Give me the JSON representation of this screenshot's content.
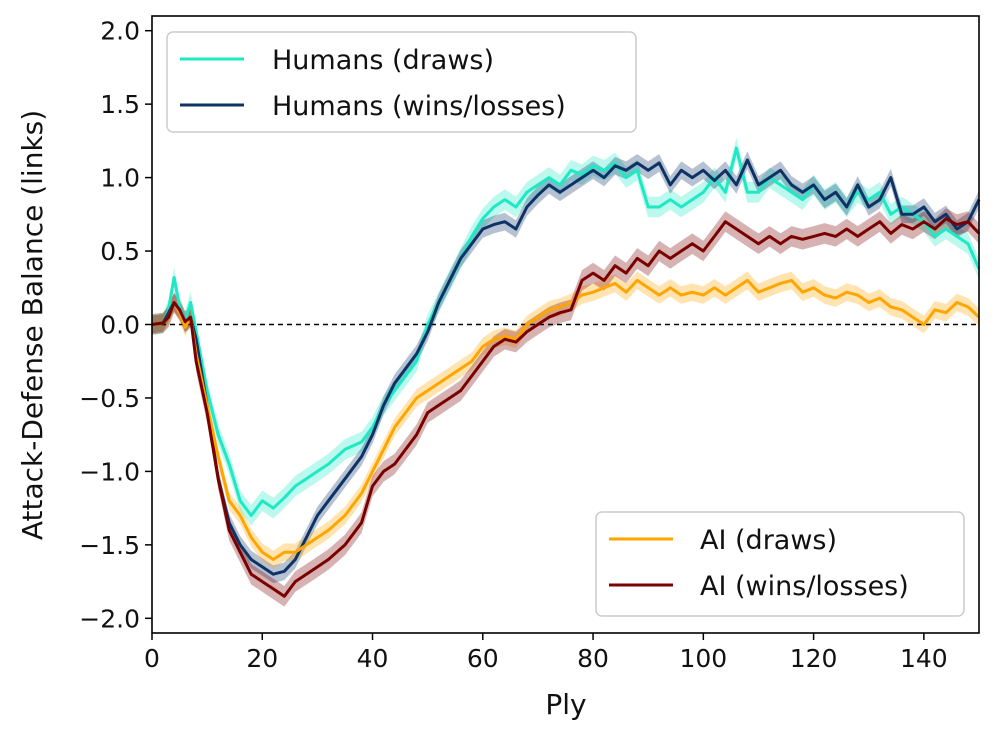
{
  "chart_data": {
    "type": "line",
    "title": "",
    "xlabel": "Ply",
    "ylabel": "Attack-Defense Balance (links)",
    "xlim": [
      0,
      150
    ],
    "ylim": [
      -2.1,
      2.1
    ],
    "xticks": [
      0,
      20,
      40,
      60,
      80,
      100,
      120,
      140
    ],
    "xtick_labels": [
      "0",
      "20",
      "40",
      "60",
      "80",
      "100",
      "120",
      "140"
    ],
    "yticks": [
      2.0,
      1.5,
      1.0,
      0.5,
      0.0,
      -0.5,
      -1.0,
      -1.5,
      -2.0
    ],
    "ytick_labels": [
      "2.0",
      "1.5",
      "1.0",
      "0.5",
      "0.0",
      "−0.5",
      "−1.0",
      "−1.5",
      "−2.0"
    ],
    "reference_line": {
      "y": 0.0,
      "style": "dashed"
    },
    "legends": [
      {
        "placement": "upper-left",
        "entries": [
          0,
          1
        ]
      },
      {
        "placement": "lower-right",
        "entries": [
          2,
          3
        ]
      }
    ],
    "series": [
      {
        "name": "Humans (draws)",
        "color": "#1de9c4",
        "band": 0.07,
        "x": [
          0,
          2,
          3,
          4,
          5,
          6,
          7,
          8,
          10,
          12,
          14,
          16,
          18,
          20,
          22,
          24,
          26,
          28,
          30,
          32,
          35,
          38,
          40,
          42,
          44,
          46,
          48,
          50,
          52,
          54,
          56,
          58,
          60,
          62,
          64,
          66,
          68,
          70,
          72,
          74,
          76,
          78,
          80,
          82,
          84,
          86,
          88,
          90,
          92,
          94,
          96,
          98,
          100,
          102,
          104,
          106,
          108,
          110,
          112,
          114,
          116,
          118,
          120,
          122,
          124,
          126,
          128,
          130,
          132,
          134,
          136,
          138,
          140,
          142,
          144,
          146,
          148,
          150
        ],
        "values": [
          0,
          0.01,
          0.1,
          0.32,
          0.12,
          0.02,
          0.15,
          -0.05,
          -0.45,
          -0.75,
          -0.95,
          -1.2,
          -1.3,
          -1.2,
          -1.25,
          -1.18,
          -1.1,
          -1.05,
          -1.0,
          -0.95,
          -0.85,
          -0.8,
          -0.7,
          -0.55,
          -0.45,
          -0.35,
          -0.25,
          0.0,
          0.15,
          0.3,
          0.45,
          0.6,
          0.72,
          0.8,
          0.85,
          0.8,
          0.9,
          0.95,
          1.0,
          0.95,
          1.05,
          1.02,
          1.08,
          1.05,
          1.1,
          1.0,
          1.05,
          0.8,
          0.8,
          0.85,
          0.8,
          0.85,
          0.9,
          1.0,
          0.9,
          1.2,
          0.9,
          0.9,
          1.0,
          0.95,
          0.9,
          0.85,
          0.95,
          0.85,
          0.9,
          0.8,
          0.9,
          0.85,
          0.9,
          0.75,
          0.8,
          0.75,
          0.7,
          0.6,
          0.65,
          0.6,
          0.55,
          0.38
        ]
      },
      {
        "name": "Humans (wins/losses)",
        "color": "#0d3366",
        "band": 0.06,
        "x": [
          0,
          2,
          3,
          4,
          5,
          6,
          7,
          8,
          10,
          12,
          14,
          16,
          18,
          20,
          22,
          24,
          26,
          28,
          30,
          32,
          35,
          38,
          40,
          42,
          44,
          46,
          48,
          50,
          52,
          54,
          56,
          58,
          60,
          62,
          64,
          66,
          68,
          70,
          72,
          74,
          76,
          78,
          80,
          82,
          84,
          86,
          88,
          90,
          92,
          94,
          96,
          98,
          100,
          102,
          104,
          106,
          108,
          110,
          112,
          114,
          116,
          118,
          120,
          122,
          124,
          126,
          128,
          130,
          132,
          134,
          136,
          138,
          140,
          142,
          144,
          146,
          148,
          150
        ],
        "values": [
          0,
          0.01,
          0.08,
          0.15,
          0.1,
          0.0,
          0.05,
          -0.1,
          -0.55,
          -1.05,
          -1.35,
          -1.5,
          -1.6,
          -1.65,
          -1.7,
          -1.68,
          -1.6,
          -1.45,
          -1.3,
          -1.2,
          -1.05,
          -0.9,
          -0.75,
          -0.55,
          -0.4,
          -0.3,
          -0.2,
          -0.05,
          0.15,
          0.3,
          0.45,
          0.55,
          0.65,
          0.68,
          0.7,
          0.65,
          0.8,
          0.88,
          0.95,
          0.9,
          0.95,
          1.0,
          1.05,
          1.0,
          1.08,
          1.05,
          1.1,
          1.05,
          1.1,
          0.95,
          1.05,
          1.0,
          1.05,
          0.98,
          1.05,
          0.95,
          1.12,
          0.95,
          1.0,
          1.05,
          0.95,
          0.9,
          0.95,
          0.85,
          0.9,
          0.8,
          0.95,
          0.8,
          0.85,
          1.0,
          0.75,
          0.75,
          0.8,
          0.7,
          0.75,
          0.65,
          0.7,
          0.85
        ]
      },
      {
        "name": "AI (draws)",
        "color": "#ffa500",
        "band": 0.06,
        "x": [
          0,
          2,
          3,
          4,
          5,
          6,
          7,
          8,
          10,
          12,
          14,
          16,
          18,
          20,
          22,
          24,
          26,
          28,
          30,
          32,
          35,
          38,
          40,
          42,
          44,
          46,
          48,
          50,
          52,
          54,
          56,
          58,
          60,
          62,
          64,
          66,
          68,
          70,
          72,
          74,
          76,
          78,
          80,
          82,
          84,
          86,
          88,
          90,
          92,
          94,
          96,
          98,
          100,
          102,
          104,
          106,
          108,
          110,
          112,
          114,
          116,
          118,
          120,
          122,
          124,
          126,
          128,
          130,
          132,
          134,
          136,
          138,
          140,
          142,
          144,
          146,
          148,
          150
        ],
        "values": [
          0,
          0.01,
          0.05,
          0.15,
          0.08,
          -0.02,
          0.05,
          -0.2,
          -0.55,
          -0.9,
          -1.2,
          -1.3,
          -1.45,
          -1.55,
          -1.6,
          -1.55,
          -1.55,
          -1.5,
          -1.45,
          -1.4,
          -1.3,
          -1.15,
          -1.0,
          -0.85,
          -0.7,
          -0.6,
          -0.5,
          -0.45,
          -0.4,
          -0.35,
          -0.3,
          -0.25,
          -0.15,
          -0.1,
          -0.08,
          -0.1,
          0.0,
          0.05,
          0.1,
          0.12,
          0.15,
          0.2,
          0.22,
          0.25,
          0.28,
          0.22,
          0.3,
          0.25,
          0.2,
          0.25,
          0.2,
          0.22,
          0.2,
          0.25,
          0.2,
          0.25,
          0.3,
          0.22,
          0.25,
          0.28,
          0.3,
          0.22,
          0.25,
          0.2,
          0.18,
          0.22,
          0.2,
          0.15,
          0.18,
          0.12,
          0.1,
          0.05,
          0.0,
          0.1,
          0.08,
          0.15,
          0.12,
          0.05
        ]
      },
      {
        "name": "AI (wins/losses)",
        "color": "#7a0000",
        "band": 0.07,
        "x": [
          0,
          2,
          3,
          4,
          5,
          6,
          7,
          8,
          10,
          12,
          14,
          16,
          18,
          20,
          22,
          24,
          26,
          28,
          30,
          32,
          35,
          38,
          40,
          42,
          44,
          46,
          48,
          50,
          52,
          54,
          56,
          58,
          60,
          62,
          64,
          66,
          68,
          70,
          72,
          74,
          76,
          78,
          80,
          82,
          84,
          86,
          88,
          90,
          92,
          94,
          96,
          98,
          100,
          102,
          104,
          106,
          108,
          110,
          112,
          114,
          116,
          118,
          120,
          122,
          124,
          126,
          128,
          130,
          132,
          134,
          136,
          138,
          140,
          142,
          144,
          146,
          148,
          150
        ],
        "values": [
          0,
          0.01,
          0.05,
          0.15,
          0.1,
          0.02,
          0.05,
          -0.25,
          -0.6,
          -1.05,
          -1.4,
          -1.55,
          -1.7,
          -1.75,
          -1.8,
          -1.85,
          -1.75,
          -1.7,
          -1.65,
          -1.6,
          -1.5,
          -1.35,
          -1.1,
          -1.0,
          -0.95,
          -0.85,
          -0.75,
          -0.6,
          -0.55,
          -0.5,
          -0.45,
          -0.35,
          -0.25,
          -0.15,
          -0.1,
          -0.12,
          -0.05,
          0.0,
          0.05,
          0.08,
          0.1,
          0.3,
          0.35,
          0.3,
          0.4,
          0.35,
          0.45,
          0.4,
          0.5,
          0.45,
          0.5,
          0.55,
          0.5,
          0.6,
          0.7,
          0.65,
          0.6,
          0.55,
          0.6,
          0.55,
          0.6,
          0.58,
          0.6,
          0.62,
          0.6,
          0.65,
          0.6,
          0.65,
          0.7,
          0.62,
          0.68,
          0.65,
          0.7,
          0.65,
          0.72,
          0.68,
          0.7,
          0.62
        ]
      }
    ]
  }
}
